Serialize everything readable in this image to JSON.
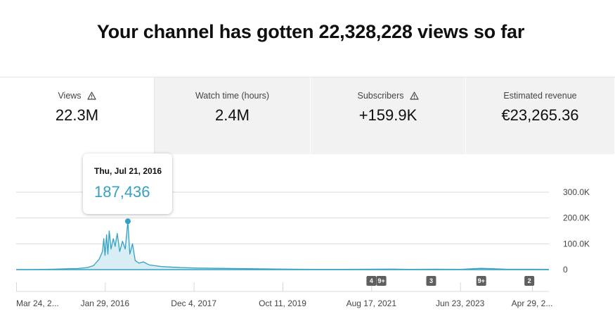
{
  "headline": "Your channel has gotten 22,328,228 views so far",
  "metrics": [
    {
      "label": "Views",
      "value": "22.3M",
      "warning": true,
      "active": true
    },
    {
      "label": "Watch time (hours)",
      "value": "2.4M",
      "warning": false,
      "active": false
    },
    {
      "label": "Subscribers",
      "value": "+159.9K",
      "warning": true,
      "active": false
    },
    {
      "label": "Estimated revenue",
      "value": "€23,265.36",
      "warning": false,
      "active": false
    }
  ],
  "tooltip": {
    "date": "Thu, Jul 21, 2016",
    "value": "187,436"
  },
  "colors": {
    "line": "#33a1c4",
    "fill": "#d8edf4",
    "grid": "#d9d9d9",
    "badge": "#5f5f5f",
    "tooltip_value": "#33a1c4"
  },
  "chart_data": {
    "type": "area",
    "ylim": [
      0,
      300000
    ],
    "y_ticks": [
      {
        "value": 300000,
        "label": "300.0K"
      },
      {
        "value": 200000,
        "label": "200.0K"
      },
      {
        "value": 100000,
        "label": "100.0K"
      },
      {
        "value": 0,
        "label": "0"
      }
    ],
    "x_tick_labels": [
      "Mar 24, 2...",
      "Jan 29, 2016",
      "Dec 4, 2017",
      "Oct 11, 2019",
      "Aug 17, 2021",
      "Jun 23, 2023",
      "Apr 29, 2..."
    ],
    "x_range": [
      "2014-03-24",
      "2025-04-29"
    ],
    "highlight": {
      "date": "2016-07-21",
      "value": 187436
    },
    "series": [
      {
        "points": [
          [
            "2014-03-24",
            0
          ],
          [
            "2014-09-01",
            500
          ],
          [
            "2015-01-01",
            1500
          ],
          [
            "2015-04-01",
            3000
          ],
          [
            "2015-07-01",
            4000
          ],
          [
            "2015-09-15",
            8000
          ],
          [
            "2015-11-01",
            15000
          ],
          [
            "2015-12-15",
            40000
          ],
          [
            "2016-01-10",
            70000
          ],
          [
            "2016-01-20",
            120000
          ],
          [
            "2016-01-29",
            55000
          ],
          [
            "2016-02-10",
            135000
          ],
          [
            "2016-02-20",
            60000
          ],
          [
            "2016-03-01",
            150000
          ],
          [
            "2016-03-15",
            80000
          ],
          [
            "2016-04-01",
            120000
          ],
          [
            "2016-04-15",
            90000
          ],
          [
            "2016-05-01",
            140000
          ],
          [
            "2016-05-20",
            70000
          ],
          [
            "2016-06-10",
            110000
          ],
          [
            "2016-07-01",
            80000
          ],
          [
            "2016-07-21",
            187436
          ],
          [
            "2016-08-05",
            60000
          ],
          [
            "2016-08-25",
            100000
          ],
          [
            "2016-09-15",
            35000
          ],
          [
            "2016-10-15",
            25000
          ],
          [
            "2016-11-15",
            30000
          ],
          [
            "2017-01-01",
            18000
          ],
          [
            "2017-02-15",
            15000
          ],
          [
            "2017-04-01",
            12000
          ],
          [
            "2017-06-01",
            10000
          ],
          [
            "2017-09-01",
            8000
          ],
          [
            "2018-01-01",
            6000
          ],
          [
            "2018-06-01",
            5000
          ],
          [
            "2019-01-01",
            3500
          ],
          [
            "2019-10-11",
            2000
          ],
          [
            "2020-06-01",
            1000
          ],
          [
            "2021-01-01",
            800
          ],
          [
            "2021-08-17",
            1500
          ],
          [
            "2022-02-01",
            2000
          ],
          [
            "2022-06-01",
            1000
          ],
          [
            "2023-01-01",
            1500
          ],
          [
            "2023-06-23",
            1000
          ],
          [
            "2023-12-01",
            5000
          ],
          [
            "2024-06-01",
            1500
          ],
          [
            "2025-04-29",
            1000
          ]
        ]
      }
    ],
    "annotations": [
      {
        "date": "2021-08-17",
        "label": "4"
      },
      {
        "date": "2021-11-01",
        "label": "9+"
      },
      {
        "date": "2022-11-15",
        "label": "3"
      },
      {
        "date": "2023-12-01",
        "label": "9+"
      },
      {
        "date": "2024-12-01",
        "label": "2"
      }
    ]
  }
}
